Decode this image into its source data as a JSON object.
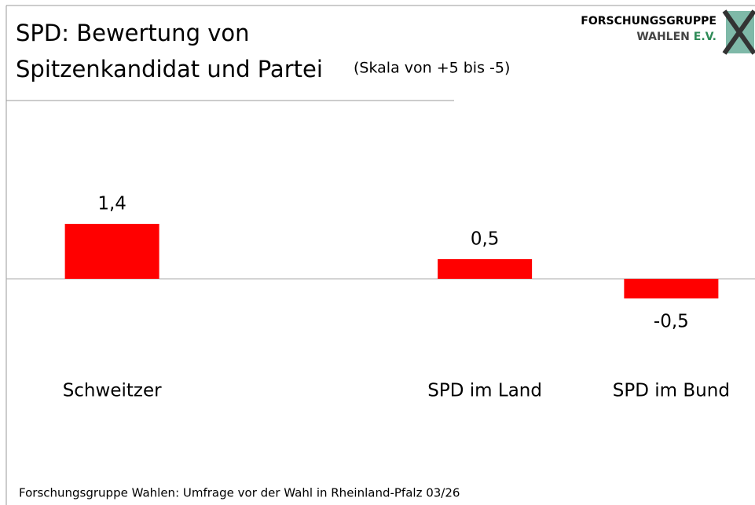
{
  "chart_data": {
    "type": "bar",
    "title_lines": [
      "SPD: Bewertung von",
      "Spitzenkandidat und Partei"
    ],
    "subtitle": "(Skala von +5 bis -5)",
    "categories": [
      "Schweitzer",
      null,
      "SPD im Land",
      "SPD im Bund"
    ],
    "values": [
      1.4,
      null,
      0.5,
      -0.5
    ],
    "value_labels": [
      "1,4",
      null,
      "0,5",
      "-0,5"
    ],
    "color": "#ff0000",
    "ylim": [
      -5,
      5
    ],
    "source": "Forschungsgruppe Wahlen: Umfrage vor der Wahl in Rheinland-Pfalz 03/26",
    "logo": [
      "FORSCHUNGSGRUPPE",
      "WAHLEN",
      "E.V."
    ]
  }
}
